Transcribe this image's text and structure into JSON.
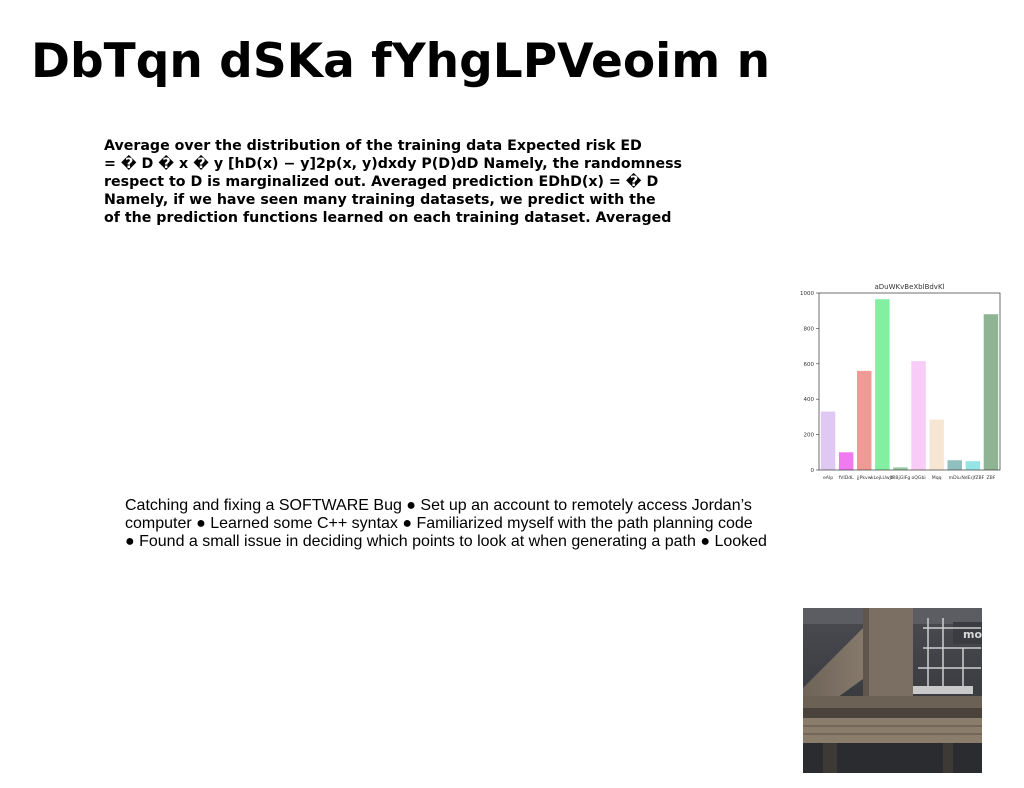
{
  "slide": {
    "title": "DbTqn dSKa fYhgLPVeoim n",
    "paragraph1": [
      "Average over the distribution of the training data Expected risk ED",
      "= � D � x � y [hD(x) − y]2p(x, y)dxdy P(D)dD Namely, the randomness",
      "respect to D is marginalized out. Averaged prediction EDhD(x) = � D",
      "Namely, if we have seen many training datasets, we predict with the",
      "of the prediction functions learned on each training dataset. Averaged"
    ],
    "paragraph2": [
      "Catching and fixing a SOFTWARE Bug ● Set up an account to remotely access Jordan’s",
      "computer ● Learned some C++ syntax ● Familiarized myself with the path planning code",
      "● Found a small issue in deciding which points to look at when generating a path ● Looked"
    ],
    "photo_sign_text": "mo"
  },
  "chart_data": {
    "type": "bar",
    "title": "aDuWKvBeXblBdvKl",
    "categories": [
      "eAlp",
      "fVIDdL",
      "jjPkvw",
      "kLejLUwJa",
      "fRBjGIFg",
      "oQGbi",
      "Mqq",
      "mDiu",
      "NdErjfZBF",
      "ZBF"
    ],
    "values": [
      330,
      100,
      560,
      965,
      15,
      615,
      285,
      55,
      50,
      880
    ],
    "colors": [
      "#e0c8f5",
      "#f07af0",
      "#f09a96",
      "#82f0a0",
      "#9cc9a6",
      "#f7ccf7",
      "#f8e6d4",
      "#8fbfbf",
      "#96e4e4",
      "#8fb493"
    ],
    "yticks": [
      0,
      200,
      400,
      600,
      800,
      1000
    ],
    "ylim": [
      0,
      1000
    ],
    "xlabel": "",
    "ylabel": ""
  }
}
